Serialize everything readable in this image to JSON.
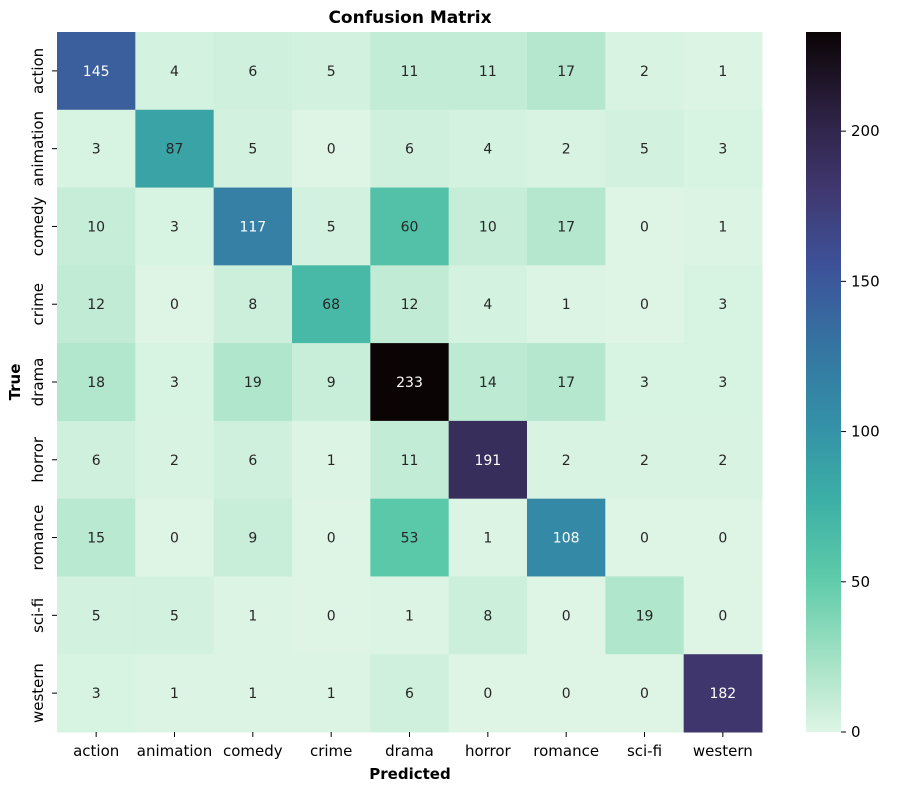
{
  "chart_data": {
    "type": "heatmap",
    "title": "Confusion Matrix",
    "xlabel": "Predicted",
    "ylabel": "True",
    "x_categories": [
      "action",
      "animation",
      "comedy",
      "crime",
      "drama",
      "horror",
      "romance",
      "sci-fi",
      "western"
    ],
    "y_categories": [
      "action",
      "animation",
      "comedy",
      "crime",
      "drama",
      "horror",
      "romance",
      "sci-fi",
      "western"
    ],
    "values": [
      [
        145,
        4,
        6,
        5,
        11,
        11,
        17,
        2,
        1
      ],
      [
        3,
        87,
        5,
        0,
        6,
        4,
        2,
        5,
        3
      ],
      [
        10,
        3,
        117,
        5,
        60,
        10,
        17,
        0,
        1
      ],
      [
        12,
        0,
        8,
        68,
        12,
        4,
        1,
        0,
        3
      ],
      [
        18,
        3,
        19,
        9,
        233,
        14,
        17,
        3,
        3
      ],
      [
        6,
        2,
        6,
        1,
        11,
        191,
        2,
        2,
        2
      ],
      [
        15,
        0,
        9,
        0,
        53,
        1,
        108,
        0,
        0
      ],
      [
        5,
        5,
        1,
        0,
        1,
        8,
        0,
        19,
        0
      ],
      [
        3,
        1,
        1,
        1,
        6,
        0,
        0,
        0,
        182
      ]
    ],
    "colorbar": {
      "range": [
        0,
        233
      ],
      "ticks": [
        0,
        50,
        100,
        150,
        200
      ],
      "colormap": "mako_r",
      "stops": [
        "#def5e5",
        "#9fe0c3",
        "#5ccaa9",
        "#3cafa6",
        "#348fa7",
        "#3573a1",
        "#3d5199",
        "#40376e",
        "#2b1f3e",
        "#0b0405"
      ]
    },
    "annotations": true,
    "grid": false
  }
}
